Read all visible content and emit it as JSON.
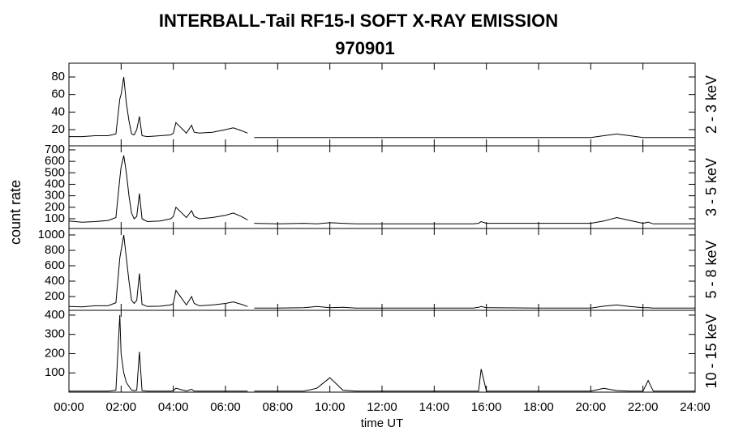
{
  "title": [
    "INTERBALL-Tail RF15-I SOFT X-RAY EMISSION",
    "970901"
  ],
  "ylabel": "count rate",
  "xlabel": "time UT",
  "chart_data": [
    {
      "type": "line",
      "panel_label": "2 - 3 keV",
      "xlim": [
        0,
        24
      ],
      "ylim": [
        1.5,
        95.7
      ],
      "yticks": [
        20,
        40,
        60,
        80
      ],
      "x": [
        0,
        0.5,
        1,
        1.5,
        1.8,
        1.95,
        2.0,
        2.1,
        2.2,
        2.3,
        2.4,
        2.5,
        2.6,
        2.7,
        2.8,
        3,
        3.5,
        3.9,
        4.0,
        4.1,
        4.5,
        4.7,
        4.8,
        5,
        5.5,
        6,
        6.3,
        6.6,
        6.85,
        6.9,
        7.1,
        8,
        9,
        9.5,
        10,
        10.5,
        11,
        12,
        14,
        15.5,
        15.7,
        15.8,
        16,
        18,
        20,
        20.5,
        21,
        21.5,
        22,
        22.2,
        22.4,
        23,
        24
      ],
      "series": [
        {
          "color": "#000000",
          "values": [
            12,
            12,
            13,
            13,
            15,
            55,
            60,
            80,
            50,
            30,
            15,
            14,
            20,
            35,
            13,
            12,
            13,
            14,
            16,
            28,
            16,
            25,
            17,
            16,
            17,
            20,
            22,
            19,
            16,
            null,
            11,
            11,
            11,
            11,
            11,
            11,
            11,
            11,
            11,
            11,
            11,
            11,
            11,
            11,
            11,
            13,
            15,
            13,
            11,
            11,
            11,
            11,
            11
          ]
        }
      ]
    },
    {
      "type": "line",
      "panel_label": "3 - 5 keV",
      "xlim": [
        0,
        24
      ],
      "ylim": [
        15,
        735
      ],
      "yticks": [
        100,
        200,
        300,
        400,
        500,
        600,
        700
      ],
      "x": [
        0,
        0.5,
        1,
        1.5,
        1.8,
        1.95,
        2.0,
        2.1,
        2.2,
        2.3,
        2.4,
        2.5,
        2.6,
        2.7,
        2.8,
        3,
        3.5,
        3.9,
        4.0,
        4.1,
        4.5,
        4.7,
        4.8,
        5,
        5.5,
        6,
        6.3,
        6.6,
        6.85,
        6.9,
        7.1,
        8,
        9,
        9.5,
        10,
        10.5,
        11,
        12,
        14,
        15.5,
        15.7,
        15.8,
        16,
        18,
        20,
        20.5,
        21,
        21.5,
        22,
        22.2,
        22.4,
        23,
        24
      ],
      "series": [
        {
          "color": "#000000",
          "values": [
            80,
            70,
            75,
            85,
            110,
            450,
            550,
            650,
            500,
            300,
            150,
            100,
            120,
            320,
            100,
            75,
            80,
            100,
            120,
            200,
            110,
            170,
            120,
            100,
            110,
            130,
            150,
            120,
            90,
            null,
            60,
            55,
            60,
            55,
            65,
            60,
            55,
            55,
            55,
            55,
            60,
            75,
            60,
            60,
            60,
            80,
            110,
            85,
            60,
            70,
            55,
            55,
            55
          ]
        }
      ]
    },
    {
      "type": "line",
      "panel_label": "5 - 8 keV",
      "xlim": [
        0,
        24
      ],
      "ylim": [
        21,
        1084
      ],
      "yticks": [
        200,
        400,
        600,
        800,
        1000
      ],
      "x": [
        0,
        0.5,
        1,
        1.5,
        1.8,
        1.95,
        2.0,
        2.1,
        2.2,
        2.3,
        2.4,
        2.5,
        2.6,
        2.7,
        2.8,
        3,
        3.5,
        3.9,
        4.0,
        4.1,
        4.5,
        4.7,
        4.8,
        5,
        5.5,
        6,
        6.3,
        6.6,
        6.85,
        6.9,
        7.1,
        8,
        9,
        9.5,
        10,
        10.5,
        11,
        12,
        14,
        15.5,
        15.7,
        15.8,
        16,
        18,
        20,
        20.5,
        21,
        21.5,
        22,
        22.2,
        22.4,
        23,
        24
      ],
      "series": [
        {
          "color": "#000000",
          "values": [
            70,
            65,
            80,
            80,
            120,
            700,
            800,
            1000,
            700,
            400,
            150,
            110,
            150,
            500,
            100,
            70,
            75,
            90,
            110,
            280,
            90,
            200,
            110,
            80,
            90,
            110,
            130,
            100,
            70,
            null,
            50,
            50,
            55,
            70,
            55,
            60,
            50,
            50,
            50,
            50,
            60,
            70,
            55,
            50,
            50,
            75,
            90,
            70,
            55,
            55,
            50,
            50,
            50
          ]
        }
      ]
    },
    {
      "type": "line",
      "panel_label": "10 - 15 keV",
      "xlim": [
        0,
        24
      ],
      "ylim": [
        0,
        425
      ],
      "yticks": [
        100,
        200,
        300,
        400
      ],
      "xticks": [
        {
          "value": 0,
          "label": "00:00"
        },
        {
          "value": 2,
          "label": "02:00"
        },
        {
          "value": 4,
          "label": "04:00"
        },
        {
          "value": 6,
          "label": "06:00"
        },
        {
          "value": 8,
          "label": "08:00"
        },
        {
          "value": 10,
          "label": "10:00"
        },
        {
          "value": 12,
          "label": "12:00"
        },
        {
          "value": 14,
          "label": "14:00"
        },
        {
          "value": 16,
          "label": "16:00"
        },
        {
          "value": 18,
          "label": "18:00"
        },
        {
          "value": 20,
          "label": "20:00"
        },
        {
          "value": 22,
          "label": "22:00"
        },
        {
          "value": 24,
          "label": "24:00"
        }
      ],
      "x": [
        0,
        0.5,
        1,
        1.5,
        1.8,
        1.95,
        2.0,
        2.1,
        2.2,
        2.3,
        2.4,
        2.5,
        2.6,
        2.7,
        2.8,
        3,
        3.5,
        3.9,
        4.0,
        4.1,
        4.5,
        4.7,
        4.8,
        5,
        5.5,
        6,
        6.3,
        6.6,
        6.85,
        6.9,
        7.1,
        8,
        9,
        9.5,
        10,
        10.5,
        11,
        12,
        14,
        15.5,
        15.7,
        15.8,
        16,
        18,
        20,
        20.5,
        21,
        21.5,
        22,
        22.2,
        22.4,
        23,
        24
      ],
      "series": [
        {
          "color": "#000000",
          "values": [
            5,
            5,
            5,
            5,
            10,
            400,
            200,
            100,
            50,
            30,
            10,
            8,
            10,
            210,
            8,
            5,
            5,
            5,
            8,
            20,
            6,
            15,
            6,
            5,
            5,
            5,
            5,
            5,
            5,
            null,
            5,
            5,
            5,
            20,
            75,
            10,
            5,
            5,
            5,
            5,
            5,
            120,
            5,
            5,
            5,
            20,
            8,
            5,
            5,
            60,
            5,
            5,
            5
          ]
        }
      ]
    }
  ]
}
